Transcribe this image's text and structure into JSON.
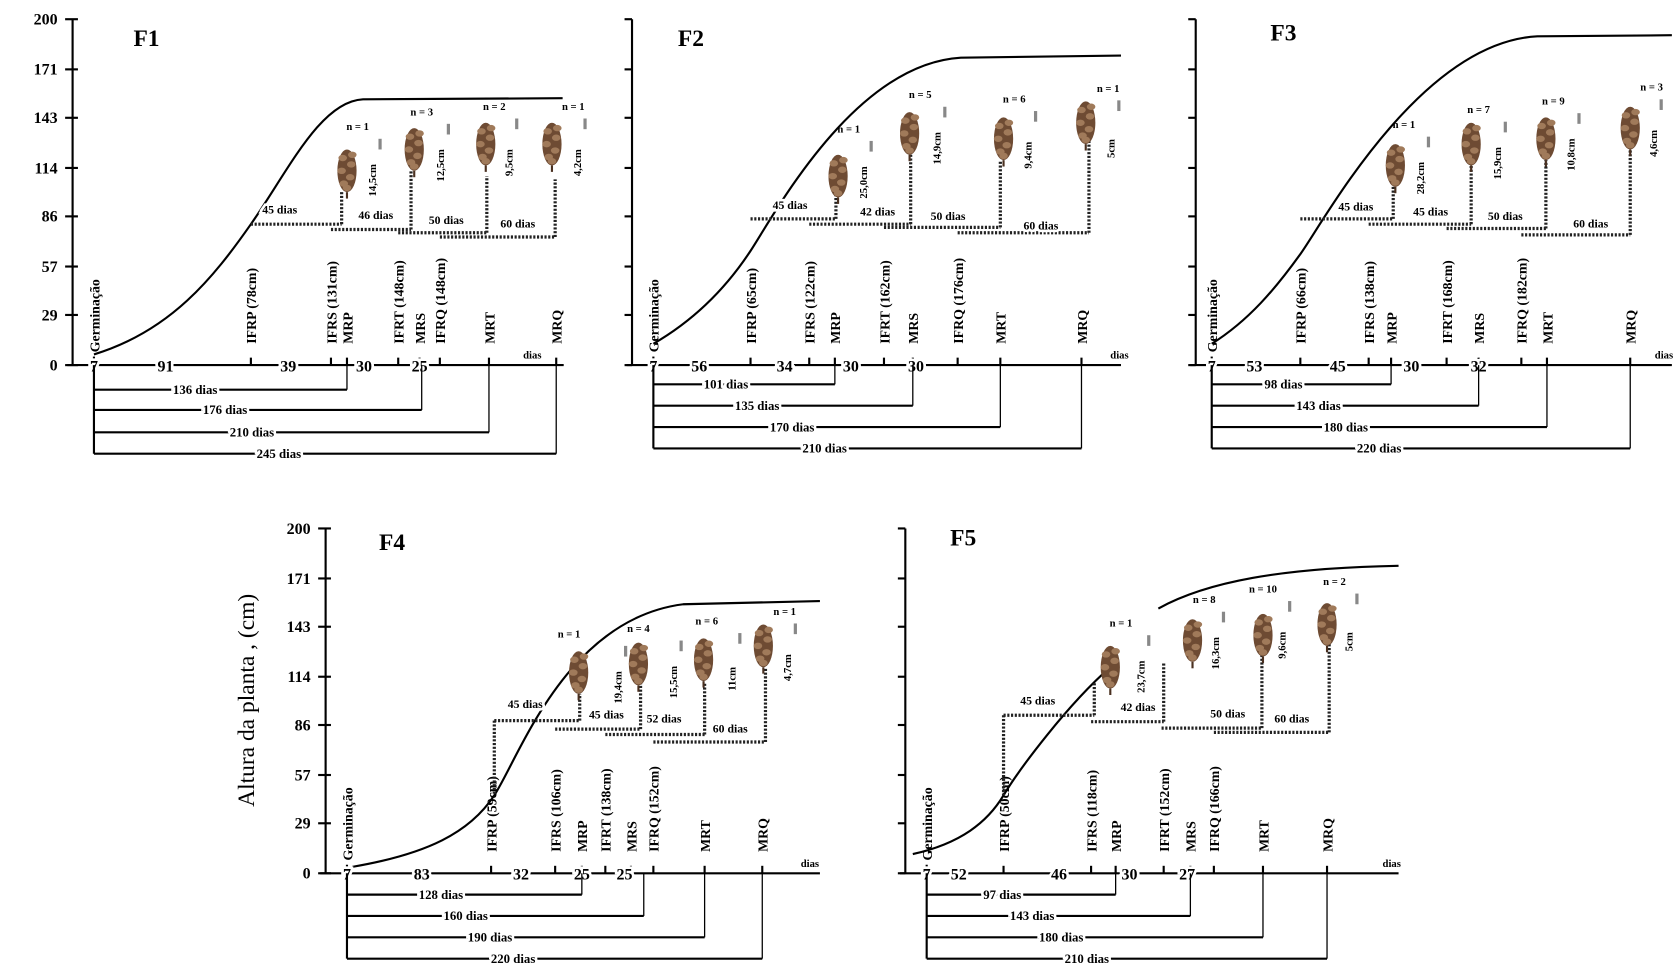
{
  "y_axis_label": "Altura da planta , (cm)",
  "ylim": [
    0,
    200
  ],
  "yticks": [
    200,
    171,
    143,
    114,
    86,
    57,
    29,
    0
  ],
  "panels": [
    {
      "title": "F1",
      "germination": "Germinação",
      "axis_unit": "dias",
      "stages": [
        "IFRP (78cm)",
        "IFRS (131cm)",
        "MRP",
        "IFRT (148cm)",
        "MRS",
        "IFRQ (148cm)",
        "MRT",
        "MRQ"
      ],
      "intervals": [
        7,
        91,
        39,
        30,
        25
      ],
      "totals": [
        "136 dias",
        "176 dias",
        "210 dias",
        "245 dias"
      ],
      "steps": [
        "45 dias",
        "46 dias",
        "50 dias",
        "60 dias"
      ],
      "plants": [
        {
          "n": "n = 1",
          "size": "14,5cm"
        },
        {
          "n": "n = 3",
          "size": "12,5cm"
        },
        {
          "n": "n = 2",
          "size": "9,5cm"
        },
        {
          "n": "n = 1",
          "size": "4,2cm"
        }
      ]
    },
    {
      "title": "F2",
      "germination": "Germinação",
      "axis_unit": "dias",
      "stages": [
        "IFRP (65cm)",
        "IFRS (122cm)",
        "MRP",
        "IFRT (162cm)",
        "MRS",
        "IFRQ (176cm)",
        "MRT",
        "MRQ"
      ],
      "intervals": [
        7,
        56,
        34,
        30,
        30
      ],
      "totals": [
        "101 dias",
        "135 dias",
        "170 dias",
        "210 dias"
      ],
      "steps": [
        "45 dias",
        "42 dias",
        "50 dias",
        "60 dias"
      ],
      "plants": [
        {
          "n": "n = 1",
          "size": "25,0cm"
        },
        {
          "n": "n = 5",
          "size": "14,9cm"
        },
        {
          "n": "n = 6",
          "size": "9,4cm"
        },
        {
          "n": "n = 1",
          "size": "5cm"
        }
      ]
    },
    {
      "title": "F3",
      "germination": "Germinação",
      "axis_unit": "dias",
      "stages": [
        "IFRP (66cm)",
        "IFRS (138cm)",
        "MRP",
        "IFRT (168cm)",
        "MRS",
        "IFRQ (182cm)",
        "MRT",
        "MRQ"
      ],
      "intervals": [
        7,
        53,
        45,
        30,
        32
      ],
      "totals": [
        "98 dias",
        "143 dias",
        "180 dias",
        "220 dias"
      ],
      "steps": [
        "45 dias",
        "45 dias",
        "50 dias",
        "60 dias"
      ],
      "plants": [
        {
          "n": "n = 1",
          "size": "28,2cm"
        },
        {
          "n": "n = 7",
          "size": "15,9cm"
        },
        {
          "n": "n = 9",
          "size": "10,8cm"
        },
        {
          "n": "n = 3",
          "size": "4,6cm"
        }
      ]
    },
    {
      "title": "F4",
      "germination": "Germinação",
      "axis_unit": "dias",
      "stages": [
        "IFRP (59cm)",
        "IFRS (106cm)",
        "MRP",
        "IFRT (138cm)",
        "MRS",
        "IFRQ (152cm)",
        "MRT",
        "MRQ"
      ],
      "intervals": [
        7,
        83,
        32,
        25,
        25
      ],
      "totals": [
        "128 dias",
        "160 dias",
        "190 dias",
        "220 dias"
      ],
      "steps": [
        "45 dias",
        "45 dias",
        "52 dias",
        "60 dias"
      ],
      "plants": [
        {
          "n": "n = 1",
          "size": "19,4cm"
        },
        {
          "n": "n = 4",
          "size": "15,5cm"
        },
        {
          "n": "n = 6",
          "size": "11cm"
        },
        {
          "n": "n = 1",
          "size": "4,7cm"
        }
      ]
    },
    {
      "title": "F5",
      "germination": "Germinação",
      "axis_unit": "dias",
      "stages": [
        "IFRP (50cm)",
        "IFRS (118cm)",
        "MRP",
        "IFRT (152cm)",
        "MRS",
        "IFRQ (166cm)",
        "MRT",
        "MRQ"
      ],
      "intervals": [
        7,
        52,
        46,
        30,
        27
      ],
      "totals": [
        "97 dias",
        "143 dias",
        "180 dias",
        "210 dias"
      ],
      "steps": [
        "45 dias",
        "42 dias",
        "50 dias",
        "60 dias"
      ],
      "plants": [
        {
          "n": "n = 1",
          "size": "23,7cm"
        },
        {
          "n": "n = 8",
          "size": "16,3cm"
        },
        {
          "n": "n = 10",
          "size": "9,6cm"
        },
        {
          "n": "n = 2",
          "size": "5cm"
        }
      ]
    }
  ]
}
